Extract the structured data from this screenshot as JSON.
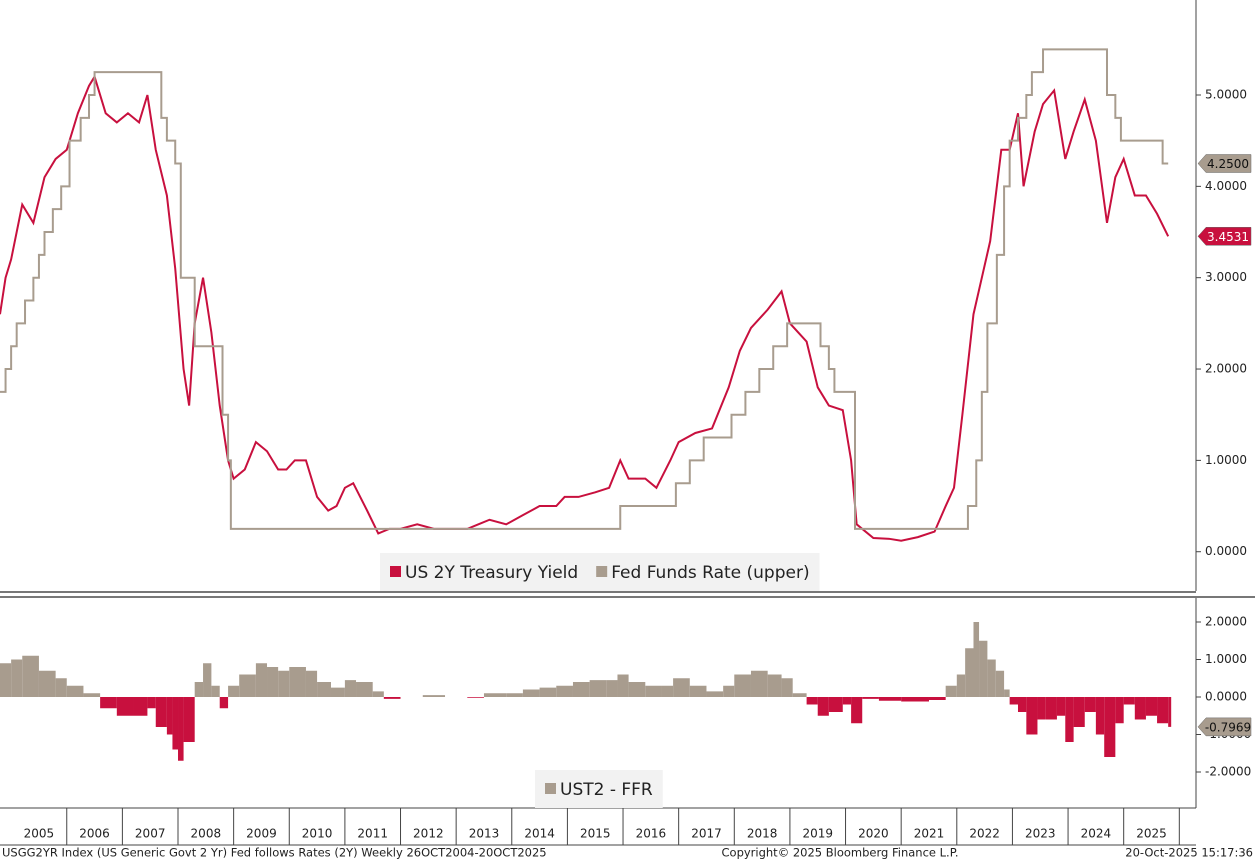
{
  "chart_data": [
    {
      "type": "line",
      "xlim": [
        2004.8,
        2026.3
      ],
      "ylim": [
        -0.43,
        6.04
      ],
      "yticks": [
        {
          "value": 0,
          "label": "0.0000"
        },
        {
          "value": 1,
          "label": "1.0000"
        },
        {
          "value": 2,
          "label": "2.0000"
        },
        {
          "value": 3,
          "label": "3.0000"
        },
        {
          "value": 4,
          "label": "4.0000"
        },
        {
          "value": 5,
          "label": "5.0000"
        }
      ],
      "series": [
        {
          "name": "US 2Y Treasury Yield",
          "color": "#c8103e",
          "last_label": "3.4531",
          "x": [
            2004.8,
            2004.9,
            2005.0,
            2005.2,
            2005.4,
            2005.6,
            2005.8,
            2006.0,
            2006.2,
            2006.4,
            2006.5,
            2006.7,
            2006.9,
            2007.1,
            2007.3,
            2007.45,
            2007.6,
            2007.8,
            2007.95,
            2008.1,
            2008.2,
            2008.3,
            2008.45,
            2008.6,
            2008.75,
            2008.9,
            2009.0,
            2009.2,
            2009.4,
            2009.6,
            2009.8,
            2009.95,
            2010.1,
            2010.3,
            2010.5,
            2010.7,
            2010.85,
            2011.0,
            2011.15,
            2011.4,
            2011.6,
            2011.8,
            2012.0,
            2012.3,
            2012.6,
            2012.9,
            2013.2,
            2013.4,
            2013.6,
            2013.9,
            2014.2,
            2014.5,
            2014.8,
            2014.95,
            2015.2,
            2015.5,
            2015.75,
            2015.95,
            2016.1,
            2016.4,
            2016.6,
            2016.85,
            2017.0,
            2017.3,
            2017.6,
            2017.9,
            2018.1,
            2018.3,
            2018.6,
            2018.85,
            2019.0,
            2019.3,
            2019.5,
            2019.7,
            2019.95,
            2020.1,
            2020.2,
            2020.5,
            2020.8,
            2021.0,
            2021.3,
            2021.6,
            2021.8,
            2021.95,
            2022.1,
            2022.3,
            2022.45,
            2022.6,
            2022.8,
            2022.95,
            2023.1,
            2023.2,
            2023.4,
            2023.55,
            2023.75,
            2023.95,
            2024.1,
            2024.3,
            2024.5,
            2024.7,
            2024.85,
            2025.0,
            2025.2,
            2025.4,
            2025.6,
            2025.8
          ],
          "values": [
            2.6,
            3.0,
            3.2,
            3.8,
            3.6,
            4.1,
            4.3,
            4.4,
            4.8,
            5.1,
            5.2,
            4.8,
            4.7,
            4.8,
            4.7,
            5.0,
            4.4,
            3.9,
            3.1,
            2.0,
            1.6,
            2.5,
            3.0,
            2.4,
            1.6,
            1.0,
            0.8,
            0.9,
            1.2,
            1.1,
            0.9,
            0.9,
            1.0,
            1.0,
            0.6,
            0.45,
            0.5,
            0.7,
            0.75,
            0.45,
            0.2,
            0.25,
            0.25,
            0.3,
            0.25,
            0.25,
            0.25,
            0.3,
            0.35,
            0.3,
            0.4,
            0.5,
            0.5,
            0.6,
            0.6,
            0.65,
            0.7,
            1.0,
            0.8,
            0.8,
            0.7,
            1.0,
            1.2,
            1.3,
            1.35,
            1.8,
            2.2,
            2.45,
            2.65,
            2.85,
            2.5,
            2.3,
            1.8,
            1.6,
            1.55,
            1.0,
            0.3,
            0.15,
            0.14,
            0.12,
            0.16,
            0.22,
            0.5,
            0.7,
            1.5,
            2.6,
            3.0,
            3.4,
            4.4,
            4.4,
            4.8,
            4.0,
            4.6,
            4.9,
            5.05,
            4.3,
            4.6,
            4.95,
            4.5,
            3.6,
            4.1,
            4.3,
            3.9,
            3.9,
            3.7,
            3.4531
          ]
        },
        {
          "name": "Fed Funds Rate (upper)",
          "color": "#a89c8e",
          "step": true,
          "last_label": "4.2500",
          "x": [
            2004.8,
            2004.9,
            2005.0,
            2005.1,
            2005.25,
            2005.4,
            2005.5,
            2005.6,
            2005.75,
            2005.9,
            2006.05,
            2006.25,
            2006.4,
            2006.5,
            2007.7,
            2007.8,
            2007.95,
            2008.05,
            2008.3,
            2008.8,
            2008.9,
            2008.95,
            2015.95,
            2016.95,
            2017.2,
            2017.45,
            2017.95,
            2018.2,
            2018.45,
            2018.7,
            2018.95,
            2019.55,
            2019.7,
            2019.8,
            2020.17,
            2022.2,
            2022.35,
            2022.45,
            2022.55,
            2022.72,
            2022.85,
            2022.95,
            2023.1,
            2023.25,
            2023.35,
            2023.55,
            2024.7,
            2024.85,
            2024.95,
            2025.7,
            2025.8
          ],
          "values": [
            1.75,
            2.0,
            2.25,
            2.5,
            2.75,
            3.0,
            3.25,
            3.5,
            3.75,
            4.0,
            4.5,
            4.75,
            5.0,
            5.25,
            4.75,
            4.5,
            4.25,
            3.0,
            2.25,
            1.5,
            1.0,
            0.25,
            0.5,
            0.75,
            1.0,
            1.25,
            1.5,
            1.75,
            2.0,
            2.25,
            2.5,
            2.25,
            2.0,
            1.75,
            0.25,
            0.5,
            1.0,
            1.75,
            2.5,
            3.25,
            4.0,
            4.5,
            4.75,
            5.0,
            5.25,
            5.5,
            5.0,
            4.75,
            4.5,
            4.25,
            4.25
          ]
        }
      ]
    },
    {
      "type": "bar",
      "xlim": [
        2004.8,
        2026.3
      ],
      "ylim": [
        -2.96,
        2.64
      ],
      "yticks": [
        {
          "value": -2,
          "label": "-2.0000"
        },
        {
          "value": -1,
          "label": "-1.0000"
        },
        {
          "value": 0,
          "label": "0.0000"
        },
        {
          "value": 1,
          "label": "1.0000"
        },
        {
          "value": 2,
          "label": "2.0000"
        }
      ],
      "xticks": [
        {
          "value": 2005.5,
          "label": "2005"
        },
        {
          "value": 2006.5,
          "label": "2006"
        },
        {
          "value": 2007.5,
          "label": "2007"
        },
        {
          "value": 2008.5,
          "label": "2008"
        },
        {
          "value": 2009.5,
          "label": "2009"
        },
        {
          "value": 2010.5,
          "label": "2010"
        },
        {
          "value": 2011.5,
          "label": "2011"
        },
        {
          "value": 2012.5,
          "label": "2012"
        },
        {
          "value": 2013.5,
          "label": "2013"
        },
        {
          "value": 2014.5,
          "label": "2014"
        },
        {
          "value": 2015.5,
          "label": "2015"
        },
        {
          "value": 2016.5,
          "label": "2016"
        },
        {
          "value": 2017.5,
          "label": "2017"
        },
        {
          "value": 2018.5,
          "label": "2018"
        },
        {
          "value": 2019.5,
          "label": "2019"
        },
        {
          "value": 2020.5,
          "label": "2020"
        },
        {
          "value": 2021.5,
          "label": "2021"
        },
        {
          "value": 2022.5,
          "label": "2022"
        },
        {
          "value": 2023.5,
          "label": "2023"
        },
        {
          "value": 2024.5,
          "label": "2024"
        },
        {
          "value": 2025.5,
          "label": "2025"
        }
      ],
      "series": [
        {
          "name": "UST2 - FFR",
          "color": "#a89c8e",
          "positive_color": "#a89c8e",
          "negative_color": "#c8103e",
          "last_label": "-0.7969",
          "x": [
            2004.8,
            2005.0,
            2005.2,
            2005.5,
            2005.8,
            2006.0,
            2006.3,
            2006.6,
            2006.9,
            2007.2,
            2007.45,
            2007.6,
            2007.8,
            2007.9,
            2008.0,
            2008.1,
            2008.3,
            2008.45,
            2008.6,
            2008.75,
            2008.9,
            2009.1,
            2009.4,
            2009.6,
            2009.8,
            2010.0,
            2010.3,
            2010.5,
            2010.75,
            2011.0,
            2011.2,
            2011.5,
            2011.7,
            2012.0,
            2012.4,
            2012.8,
            2013.2,
            2013.5,
            2013.9,
            2014.2,
            2014.5,
            2014.8,
            2015.1,
            2015.4,
            2015.7,
            2015.9,
            2016.1,
            2016.4,
            2016.7,
            2016.9,
            2017.2,
            2017.5,
            2017.8,
            2018.0,
            2018.3,
            2018.6,
            2018.85,
            2019.05,
            2019.3,
            2019.5,
            2019.7,
            2019.95,
            2020.1,
            2020.3,
            2020.6,
            2021.0,
            2021.5,
            2021.8,
            2022.0,
            2022.15,
            2022.3,
            2022.4,
            2022.55,
            2022.7,
            2022.85,
            2022.95,
            2023.1,
            2023.25,
            2023.45,
            2023.6,
            2023.8,
            2023.95,
            2024.1,
            2024.3,
            2024.5,
            2024.65,
            2024.85,
            2025.0,
            2025.2,
            2025.4,
            2025.6,
            2025.8
          ],
          "values": [
            0.9,
            1.0,
            1.1,
            0.7,
            0.5,
            0.3,
            0.1,
            -0.3,
            -0.5,
            -0.5,
            -0.3,
            -0.8,
            -1.0,
            -1.4,
            -1.7,
            -1.2,
            0.4,
            0.9,
            0.3,
            -0.3,
            0.3,
            0.6,
            0.9,
            0.8,
            0.7,
            0.8,
            0.7,
            0.4,
            0.25,
            0.45,
            0.4,
            0.15,
            -0.05,
            0.0,
            0.05,
            0.0,
            -0.02,
            0.1,
            0.1,
            0.2,
            0.25,
            0.3,
            0.4,
            0.45,
            0.45,
            0.6,
            0.4,
            0.3,
            0.3,
            0.5,
            0.3,
            0.15,
            0.3,
            0.6,
            0.7,
            0.6,
            0.5,
            0.1,
            -0.2,
            -0.5,
            -0.4,
            -0.2,
            -0.7,
            -0.05,
            -0.1,
            -0.12,
            -0.08,
            0.3,
            0.6,
            1.3,
            2.0,
            1.5,
            1.0,
            0.7,
            0.2,
            -0.2,
            -0.4,
            -1.0,
            -0.6,
            -0.6,
            -0.5,
            -1.2,
            -0.8,
            -0.4,
            -1.0,
            -1.6,
            -0.7,
            -0.2,
            -0.6,
            -0.5,
            -0.7,
            -0.7969
          ]
        }
      ]
    }
  ],
  "footer": {
    "left": "USGG2YR Index (US Generic Govt 2 Yr) Fed follows Rates (2Y) Weekly 26OCT2004-20OCT2025",
    "center": "Copyright© 2025 Bloomberg Finance L.P.",
    "right": "20-Oct-2025 15:17:36"
  }
}
